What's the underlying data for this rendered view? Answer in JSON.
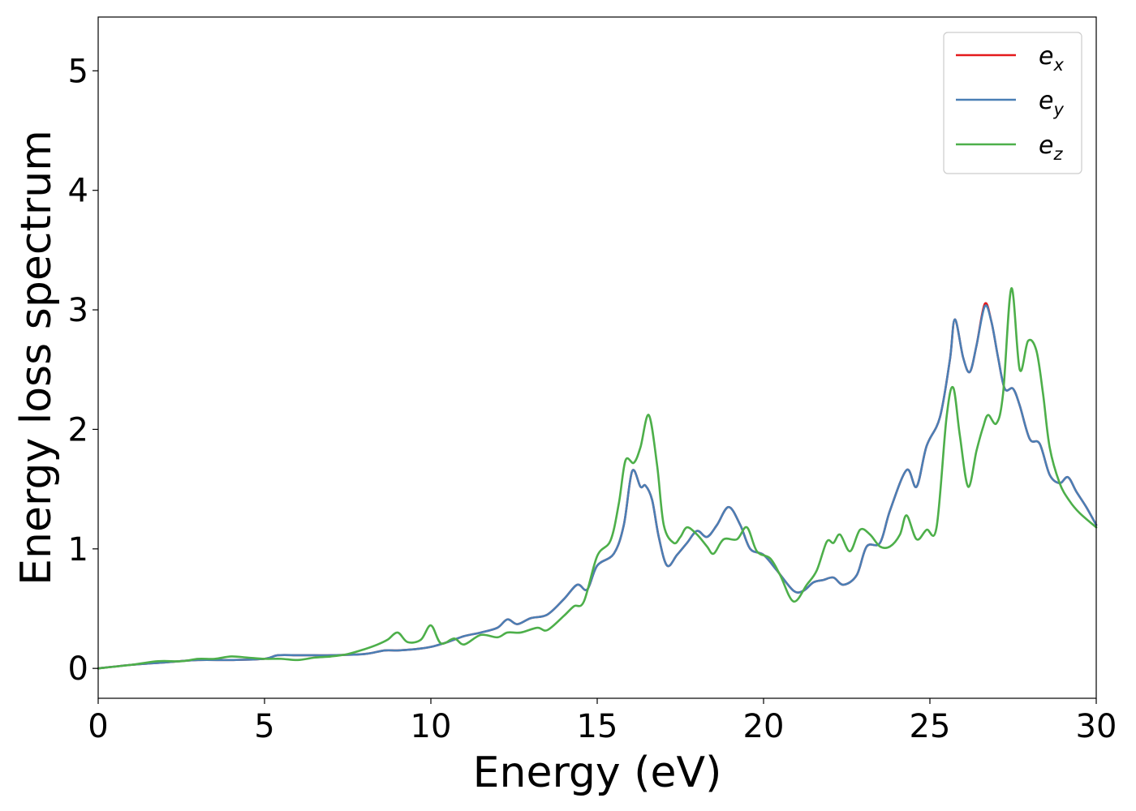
{
  "chart_data": {
    "type": "line",
    "title": "",
    "xlabel": "Energy (eV)",
    "ylabel": "Energy loss spectrum",
    "xlim": [
      0,
      30
    ],
    "ylim": [
      -0.25,
      5.45
    ],
    "x_ticks": [
      0,
      5,
      10,
      15,
      20,
      25,
      30
    ],
    "x_tick_labels": [
      "0",
      "5",
      "10",
      "15",
      "20",
      "25",
      "30"
    ],
    "y_ticks": [
      0,
      1,
      2,
      3,
      4,
      5
    ],
    "y_tick_labels": [
      "0",
      "1",
      "2",
      "3",
      "4",
      "5"
    ],
    "grid": false,
    "legend_position": "top-right",
    "series": [
      {
        "name": "e_x",
        "label_main": "e",
        "label_sub": "x",
        "color": "#e41a1c",
        "points": [
          [
            0,
            0
          ],
          [
            1,
            0.03
          ],
          [
            2,
            0.05
          ],
          [
            3,
            0.07
          ],
          [
            4,
            0.07
          ],
          [
            5,
            0.08
          ],
          [
            5.4,
            0.11
          ],
          [
            6,
            0.11
          ],
          [
            6.5,
            0.11
          ],
          [
            7,
            0.11
          ],
          [
            8,
            0.12
          ],
          [
            8.6,
            0.15
          ],
          [
            9,
            0.15
          ],
          [
            9.5,
            0.16
          ],
          [
            10,
            0.18
          ],
          [
            10.5,
            0.22
          ],
          [
            11,
            0.27
          ],
          [
            11.5,
            0.3
          ],
          [
            12,
            0.34
          ],
          [
            12.3,
            0.41
          ],
          [
            12.6,
            0.37
          ],
          [
            13,
            0.42
          ],
          [
            13.5,
            0.45
          ],
          [
            14,
            0.58
          ],
          [
            14.4,
            0.7
          ],
          [
            14.7,
            0.66
          ],
          [
            15,
            0.86
          ],
          [
            15.5,
            0.96
          ],
          [
            15.8,
            1.2
          ],
          [
            16.05,
            1.65
          ],
          [
            16.3,
            1.52
          ],
          [
            16.45,
            1.53
          ],
          [
            16.65,
            1.41
          ],
          [
            16.85,
            1.1
          ],
          [
            17.1,
            0.86
          ],
          [
            17.4,
            0.95
          ],
          [
            17.7,
            1.05
          ],
          [
            18,
            1.15
          ],
          [
            18.3,
            1.1
          ],
          [
            18.6,
            1.2
          ],
          [
            18.95,
            1.35
          ],
          [
            19.3,
            1.2
          ],
          [
            19.6,
            1.0
          ],
          [
            20,
            0.95
          ],
          [
            20.4,
            0.82
          ],
          [
            20.9,
            0.65
          ],
          [
            21.2,
            0.65
          ],
          [
            21.5,
            0.72
          ],
          [
            21.8,
            0.74
          ],
          [
            22.1,
            0.76
          ],
          [
            22.4,
            0.7
          ],
          [
            22.8,
            0.78
          ],
          [
            23.1,
            1.02
          ],
          [
            23.5,
            1.05
          ],
          [
            23.8,
            1.32
          ],
          [
            24.3,
            1.66
          ],
          [
            24.6,
            1.52
          ],
          [
            24.9,
            1.86
          ],
          [
            25.3,
            2.1
          ],
          [
            25.6,
            2.58
          ],
          [
            25.75,
            2.92
          ],
          [
            26,
            2.6
          ],
          [
            26.2,
            2.48
          ],
          [
            26.4,
            2.7
          ],
          [
            26.65,
            3.05
          ],
          [
            26.85,
            2.9
          ],
          [
            27.05,
            2.6
          ],
          [
            27.25,
            2.34
          ],
          [
            27.5,
            2.34
          ],
          [
            27.7,
            2.2
          ],
          [
            28,
            1.92
          ],
          [
            28.3,
            1.88
          ],
          [
            28.6,
            1.62
          ],
          [
            28.9,
            1.55
          ],
          [
            29.15,
            1.6
          ],
          [
            29.4,
            1.48
          ],
          [
            29.7,
            1.35
          ],
          [
            30,
            1.2
          ]
        ]
      },
      {
        "name": "e_y",
        "label_main": "e",
        "label_sub": "y",
        "color": "#4a7fb5",
        "points": [
          [
            0,
            0
          ],
          [
            1,
            0.03
          ],
          [
            2,
            0.05
          ],
          [
            3,
            0.07
          ],
          [
            4,
            0.07
          ],
          [
            5,
            0.08
          ],
          [
            5.4,
            0.11
          ],
          [
            6,
            0.11
          ],
          [
            6.5,
            0.11
          ],
          [
            7,
            0.11
          ],
          [
            8,
            0.12
          ],
          [
            8.6,
            0.15
          ],
          [
            9,
            0.15
          ],
          [
            9.5,
            0.16
          ],
          [
            10,
            0.18
          ],
          [
            10.5,
            0.22
          ],
          [
            11,
            0.27
          ],
          [
            11.5,
            0.3
          ],
          [
            12,
            0.34
          ],
          [
            12.3,
            0.41
          ],
          [
            12.6,
            0.37
          ],
          [
            13,
            0.42
          ],
          [
            13.5,
            0.45
          ],
          [
            14,
            0.58
          ],
          [
            14.4,
            0.7
          ],
          [
            14.7,
            0.66
          ],
          [
            15,
            0.86
          ],
          [
            15.5,
            0.96
          ],
          [
            15.8,
            1.2
          ],
          [
            16.05,
            1.65
          ],
          [
            16.3,
            1.52
          ],
          [
            16.45,
            1.53
          ],
          [
            16.65,
            1.41
          ],
          [
            16.85,
            1.1
          ],
          [
            17.1,
            0.86
          ],
          [
            17.4,
            0.95
          ],
          [
            17.7,
            1.05
          ],
          [
            18,
            1.15
          ],
          [
            18.3,
            1.1
          ],
          [
            18.6,
            1.2
          ],
          [
            18.95,
            1.35
          ],
          [
            19.3,
            1.2
          ],
          [
            19.6,
            1.0
          ],
          [
            20,
            0.95
          ],
          [
            20.4,
            0.82
          ],
          [
            20.9,
            0.65
          ],
          [
            21.2,
            0.65
          ],
          [
            21.5,
            0.72
          ],
          [
            21.8,
            0.74
          ],
          [
            22.1,
            0.76
          ],
          [
            22.4,
            0.7
          ],
          [
            22.8,
            0.78
          ],
          [
            23.1,
            1.02
          ],
          [
            23.5,
            1.05
          ],
          [
            23.8,
            1.32
          ],
          [
            24.3,
            1.66
          ],
          [
            24.6,
            1.52
          ],
          [
            24.9,
            1.86
          ],
          [
            25.3,
            2.1
          ],
          [
            25.6,
            2.58
          ],
          [
            25.75,
            2.92
          ],
          [
            26,
            2.6
          ],
          [
            26.2,
            2.48
          ],
          [
            26.4,
            2.7
          ],
          [
            26.65,
            3.03
          ],
          [
            26.85,
            2.9
          ],
          [
            27.05,
            2.6
          ],
          [
            27.25,
            2.34
          ],
          [
            27.5,
            2.34
          ],
          [
            27.7,
            2.2
          ],
          [
            28,
            1.92
          ],
          [
            28.3,
            1.88
          ],
          [
            28.6,
            1.62
          ],
          [
            28.9,
            1.55
          ],
          [
            29.15,
            1.6
          ],
          [
            29.4,
            1.48
          ],
          [
            29.7,
            1.35
          ],
          [
            30,
            1.2
          ]
        ]
      },
      {
        "name": "e_z",
        "label_main": "e",
        "label_sub": "z",
        "color": "#4daf4a",
        "points": [
          [
            0,
            0
          ],
          [
            1,
            0.03
          ],
          [
            1.8,
            0.06
          ],
          [
            2.5,
            0.06
          ],
          [
            3,
            0.08
          ],
          [
            3.5,
            0.08
          ],
          [
            4,
            0.1
          ],
          [
            4.5,
            0.09
          ],
          [
            5,
            0.08
          ],
          [
            5.5,
            0.08
          ],
          [
            6,
            0.07
          ],
          [
            6.5,
            0.09
          ],
          [
            7,
            0.1
          ],
          [
            7.5,
            0.12
          ],
          [
            8,
            0.16
          ],
          [
            8.4,
            0.2
          ],
          [
            8.7,
            0.24
          ],
          [
            9,
            0.3
          ],
          [
            9.3,
            0.22
          ],
          [
            9.7,
            0.24
          ],
          [
            10,
            0.36
          ],
          [
            10.3,
            0.21
          ],
          [
            10.7,
            0.25
          ],
          [
            11,
            0.2
          ],
          [
            11.5,
            0.28
          ],
          [
            12,
            0.26
          ],
          [
            12.3,
            0.3
          ],
          [
            12.7,
            0.3
          ],
          [
            13.2,
            0.34
          ],
          [
            13.5,
            0.32
          ],
          [
            14,
            0.44
          ],
          [
            14.3,
            0.52
          ],
          [
            14.6,
            0.56
          ],
          [
            15,
            0.94
          ],
          [
            15.4,
            1.07
          ],
          [
            15.65,
            1.38
          ],
          [
            15.85,
            1.74
          ],
          [
            16.1,
            1.72
          ],
          [
            16.3,
            1.85
          ],
          [
            16.55,
            2.12
          ],
          [
            16.8,
            1.7
          ],
          [
            17,
            1.2
          ],
          [
            17.3,
            1.05
          ],
          [
            17.5,
            1.1
          ],
          [
            17.7,
            1.18
          ],
          [
            18,
            1.12
          ],
          [
            18.3,
            1.02
          ],
          [
            18.5,
            0.96
          ],
          [
            18.8,
            1.08
          ],
          [
            19.2,
            1.08
          ],
          [
            19.5,
            1.18
          ],
          [
            19.8,
            0.98
          ],
          [
            20.2,
            0.92
          ],
          [
            20.5,
            0.78
          ],
          [
            20.9,
            0.56
          ],
          [
            21.3,
            0.7
          ],
          [
            21.6,
            0.82
          ],
          [
            21.9,
            1.06
          ],
          [
            22.1,
            1.05
          ],
          [
            22.3,
            1.12
          ],
          [
            22.6,
            0.98
          ],
          [
            22.9,
            1.16
          ],
          [
            23.2,
            1.12
          ],
          [
            23.5,
            1.02
          ],
          [
            23.8,
            1.02
          ],
          [
            24.1,
            1.12
          ],
          [
            24.3,
            1.28
          ],
          [
            24.6,
            1.08
          ],
          [
            24.9,
            1.16
          ],
          [
            25.2,
            1.18
          ],
          [
            25.5,
            2.1
          ],
          [
            25.7,
            2.35
          ],
          [
            25.9,
            1.95
          ],
          [
            26.15,
            1.52
          ],
          [
            26.4,
            1.82
          ],
          [
            26.6,
            2.02
          ],
          [
            26.75,
            2.12
          ],
          [
            27,
            2.05
          ],
          [
            27.2,
            2.3
          ],
          [
            27.45,
            3.18
          ],
          [
            27.7,
            2.5
          ],
          [
            27.95,
            2.74
          ],
          [
            28.2,
            2.66
          ],
          [
            28.4,
            2.3
          ],
          [
            28.6,
            1.85
          ],
          [
            28.9,
            1.55
          ],
          [
            29.2,
            1.4
          ],
          [
            29.5,
            1.3
          ],
          [
            30,
            1.18
          ]
        ]
      }
    ]
  }
}
